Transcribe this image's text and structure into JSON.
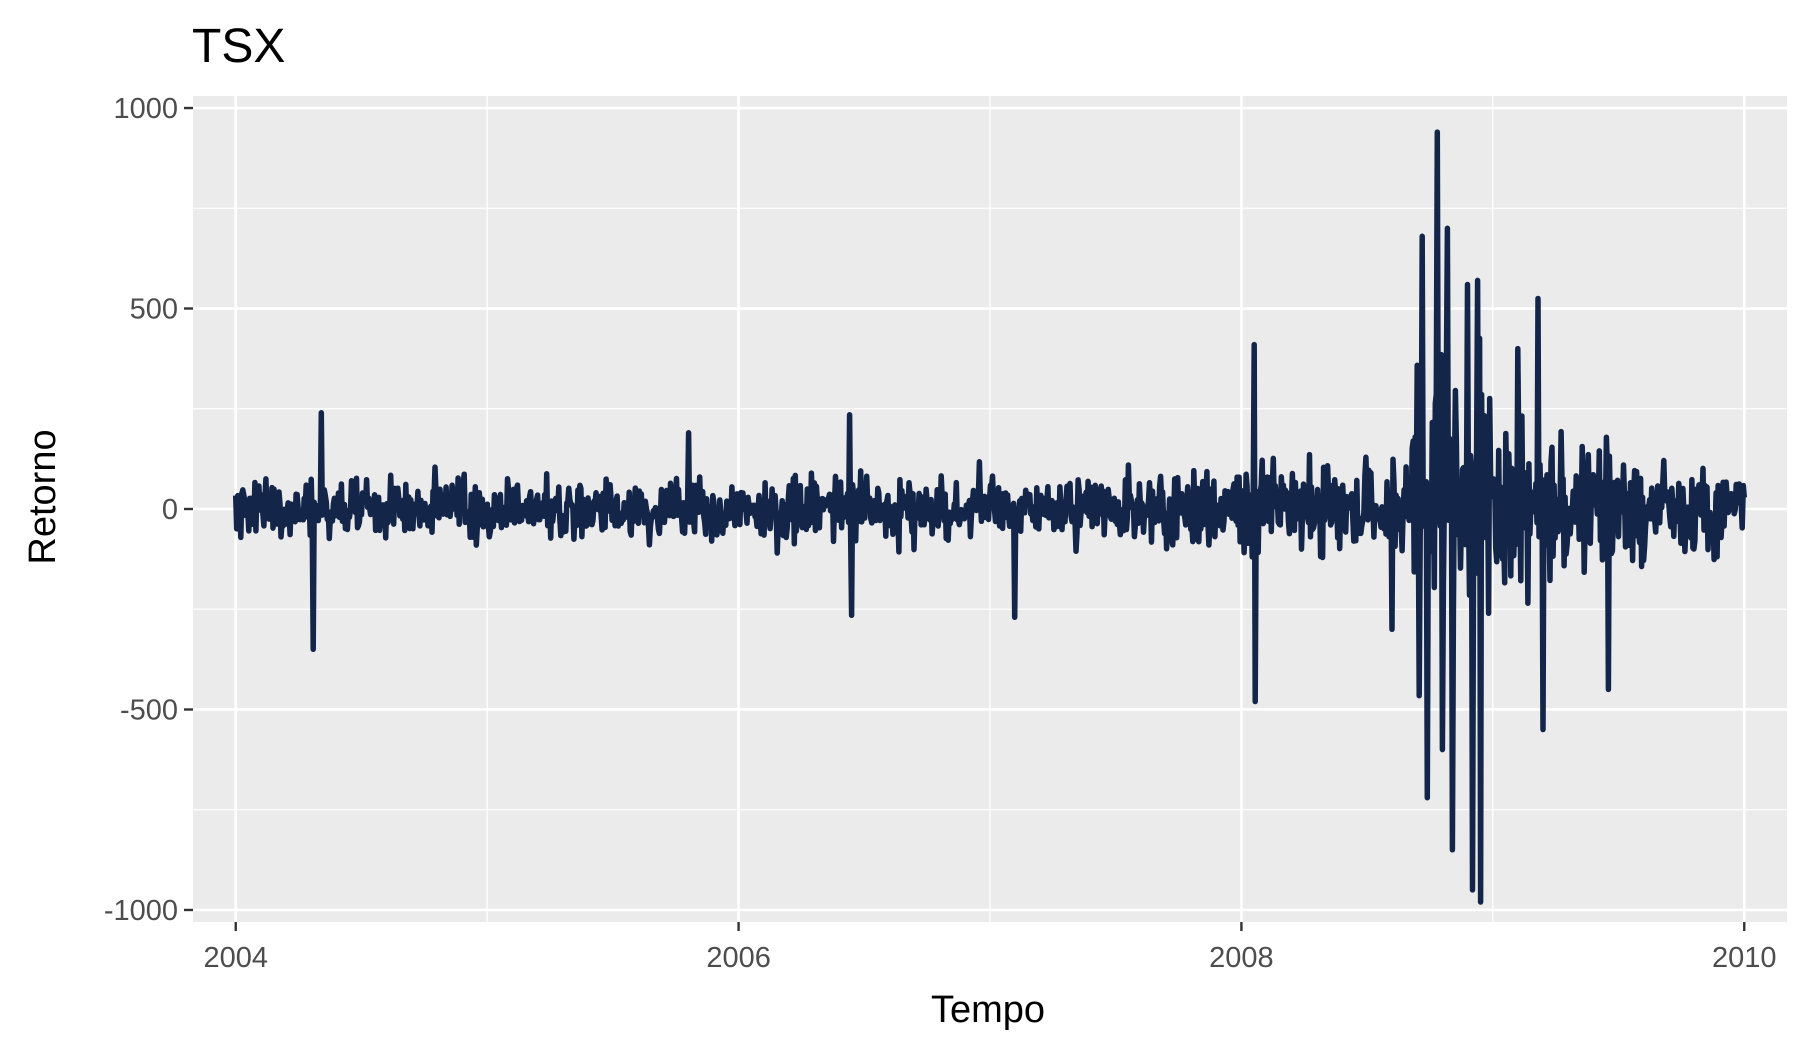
{
  "chart_data": {
    "type": "line",
    "title": "TSX",
    "xlabel": "Tempo",
    "ylabel": "Retorno",
    "xlim": [
      2003.83,
      2010.17
    ],
    "ylim": [
      -1030,
      1030
    ],
    "x_ticks": [
      2004,
      2006,
      2008,
      2010
    ],
    "x_tick_labels": [
      "2004",
      "2006",
      "2008",
      "2010"
    ],
    "y_ticks": [
      -1000,
      -500,
      0,
      500,
      1000
    ],
    "y_tick_labels": [
      "-1000",
      "-500",
      "0",
      "500",
      "1000"
    ],
    "grid": true,
    "legend": "none",
    "colors": {
      "line": "#14254a",
      "panel": "#ebebeb",
      "grid": "#ffffff",
      "tick": "#333333"
    },
    "series": [
      {
        "x_start": 2004.0,
        "x_end": 2010.0,
        "peaks": [
          {
            "x": 2004.31,
            "y": -350
          },
          {
            "x": 2004.34,
            "y": 240
          },
          {
            "x": 2005.8,
            "y": 190
          },
          {
            "x": 2006.44,
            "y": 235
          },
          {
            "x": 2006.45,
            "y": -265
          },
          {
            "x": 2007.1,
            "y": -270
          },
          {
            "x": 2008.05,
            "y": 410
          },
          {
            "x": 2008.05,
            "y": -480
          },
          {
            "x": 2008.6,
            "y": -300
          },
          {
            "x": 2008.72,
            "y": 680
          },
          {
            "x": 2008.74,
            "y": -720
          },
          {
            "x": 2008.78,
            "y": 940
          },
          {
            "x": 2008.8,
            "y": -600
          },
          {
            "x": 2008.82,
            "y": 700
          },
          {
            "x": 2008.84,
            "y": -850
          },
          {
            "x": 2008.9,
            "y": 560
          },
          {
            "x": 2008.92,
            "y": -950
          },
          {
            "x": 2008.94,
            "y": 570
          },
          {
            "x": 2008.95,
            "y": -980
          },
          {
            "x": 2009.1,
            "y": 400
          },
          {
            "x": 2009.18,
            "y": 525
          },
          {
            "x": 2009.2,
            "y": -550
          },
          {
            "x": 2009.46,
            "y": -450
          }
        ]
      }
    ]
  }
}
